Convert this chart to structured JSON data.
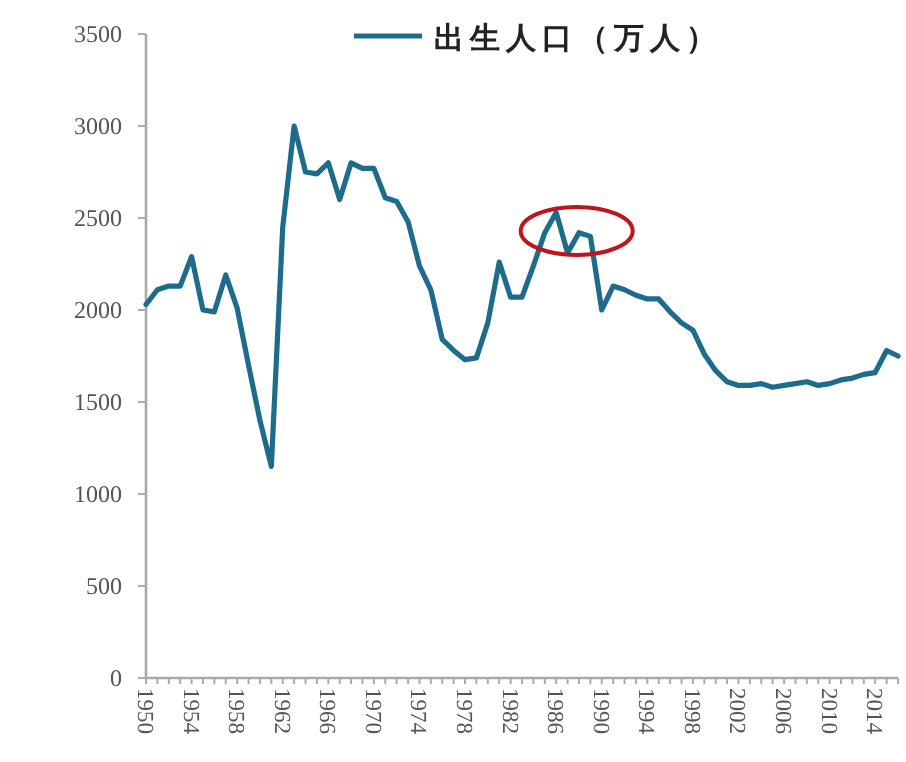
{
  "chart_data": {
    "type": "line",
    "x": [
      1950,
      1951,
      1952,
      1953,
      1954,
      1955,
      1956,
      1957,
      1958,
      1959,
      1960,
      1961,
      1962,
      1963,
      1964,
      1965,
      1966,
      1967,
      1968,
      1969,
      1970,
      1971,
      1972,
      1973,
      1974,
      1975,
      1976,
      1977,
      1978,
      1979,
      1980,
      1981,
      1982,
      1983,
      1984,
      1985,
      1986,
      1987,
      1988,
      1989,
      1990,
      1991,
      1992,
      1993,
      1994,
      1995,
      1996,
      1997,
      1998,
      1999,
      2000,
      2001,
      2002,
      2003,
      2004,
      2005,
      2006,
      2007,
      2008,
      2009,
      2010,
      2011,
      2012,
      2013,
      2014,
      2015,
      2016
    ],
    "series": [
      {
        "name": "出生人口（万人）",
        "color": "#1d6c8c",
        "values": [
          2030,
          2110,
          2130,
          2130,
          2290,
          2000,
          1990,
          2190,
          2010,
          1700,
          1400,
          1150,
          2450,
          3000,
          2750,
          2740,
          2800,
          2600,
          2800,
          2770,
          2770,
          2610,
          2590,
          2480,
          2240,
          2110,
          1840,
          1780,
          1730,
          1740,
          1930,
          2260,
          2070,
          2070,
          2240,
          2420,
          2530,
          2310,
          2420,
          2400,
          2000,
          2130,
          2110,
          2080,
          2060,
          2060,
          1990,
          1930,
          1890,
          1760,
          1670,
          1610,
          1590,
          1590,
          1600,
          1580,
          1590,
          1600,
          1610,
          1590,
          1600,
          1620,
          1630,
          1650,
          1660,
          1780,
          1750
        ]
      }
    ],
    "ylim": [
      0,
      3500
    ],
    "yticks": [
      0,
      500,
      1000,
      1500,
      2000,
      2500,
      3000,
      3500
    ],
    "xlim": [
      1950,
      2016
    ],
    "xticks": [
      1950,
      {
        "value": 1951,
        "label": null
      },
      {
        "value": 1952,
        "label": null
      },
      {
        "value": 1953,
        "label": null
      },
      1954,
      {
        "value": 1955,
        "label": null
      },
      {
        "value": 1956,
        "label": null
      },
      {
        "value": 1957,
        "label": null
      },
      1958,
      {
        "value": 1959,
        "label": null
      },
      {
        "value": 1960,
        "label": null
      },
      {
        "value": 1961,
        "label": null
      },
      1962,
      {
        "value": 1963,
        "label": null
      },
      {
        "value": 1964,
        "label": null
      },
      {
        "value": 1965,
        "label": null
      },
      1966,
      {
        "value": 1967,
        "label": null
      },
      {
        "value": 1968,
        "label": null
      },
      {
        "value": 1969,
        "label": null
      },
      1970,
      {
        "value": 1971,
        "label": null
      },
      {
        "value": 1972,
        "label": null
      },
      {
        "value": 1973,
        "label": null
      },
      1974,
      {
        "value": 1975,
        "label": null
      },
      {
        "value": 1976,
        "label": null
      },
      {
        "value": 1977,
        "label": null
      },
      1978,
      {
        "value": 1979,
        "label": null
      },
      {
        "value": 1980,
        "label": null
      },
      {
        "value": 1981,
        "label": null
      },
      1982,
      {
        "value": 1983,
        "label": null
      },
      {
        "value": 1984,
        "label": null
      },
      {
        "value": 1985,
        "label": null
      },
      1986,
      {
        "value": 1987,
        "label": null
      },
      {
        "value": 1988,
        "label": null
      },
      {
        "value": 1989,
        "label": null
      },
      1990,
      {
        "value": 1991,
        "label": null
      },
      {
        "value": 1992,
        "label": null
      },
      {
        "value": 1993,
        "label": null
      },
      1994,
      {
        "value": 1995,
        "label": null
      },
      {
        "value": 1996,
        "label": null
      },
      {
        "value": 1997,
        "label": null
      },
      1998,
      {
        "value": 1999,
        "label": null
      },
      {
        "value": 2000,
        "label": null
      },
      {
        "value": 2001,
        "label": null
      },
      2002,
      {
        "value": 2003,
        "label": null
      },
      {
        "value": 2004,
        "label": null
      },
      {
        "value": 2005,
        "label": null
      },
      2006,
      {
        "value": 2007,
        "label": null
      },
      {
        "value": 2008,
        "label": null
      },
      {
        "value": 2009,
        "label": null
      },
      2010,
      {
        "value": 2011,
        "label": null
      },
      {
        "value": 2012,
        "label": null
      },
      {
        "value": 2013,
        "label": null
      },
      2014,
      {
        "value": 2015,
        "label": null
      },
      {
        "value": 2016,
        "label": null
      }
    ],
    "legend": "top",
    "grid": false,
    "marker": "none",
    "line_style": "solid"
  }
}
